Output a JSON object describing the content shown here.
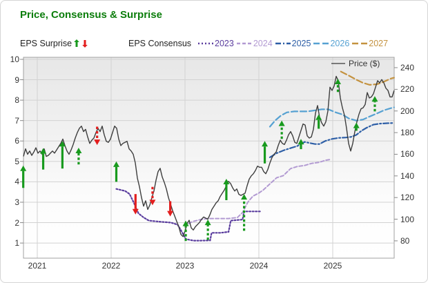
{
  "title": "Price, Consensus & Surprise",
  "colors": {
    "title": "#0b7d0b",
    "beat_arrow": "#189a1e",
    "miss_arrow": "#e31e1e",
    "price_line": "#3d3d3d",
    "grid": "#d2d2d2",
    "plot_border": "#a0a0a0",
    "axis_text": "#333333",
    "legend_text": "#222222"
  },
  "legend": {
    "surprise_label": "EPS Surprise",
    "consensus_label": "EPS Consensus",
    "series": [
      {
        "label": "2023",
        "color": "#5a3d9e",
        "dash": "2,3"
      },
      {
        "label": "2024",
        "color": "#b29ad2",
        "dash": "5,3"
      },
      {
        "label": "2025",
        "color": "#2d5ea6",
        "dash": "8,3,2,3"
      },
      {
        "label": "2026",
        "color": "#56a1d2",
        "dash": "9,4"
      },
      {
        "label": "2027",
        "color": "#c4923f",
        "dash": "9,4"
      }
    ]
  },
  "price_legend": {
    "label": "Price ($)",
    "swatch_color": "#555555"
  },
  "axes": {
    "left": {
      "ticks": [
        10,
        9,
        8,
        7,
        6,
        5,
        4,
        3,
        2,
        1
      ]
    },
    "right": {
      "ticks": [
        240,
        220,
        200,
        180,
        160,
        140,
        120,
        100,
        80
      ]
    },
    "x": {
      "ticks": [
        2021,
        2022,
        2023,
        2024,
        2025
      ]
    }
  },
  "chart_data": {
    "type": "line",
    "x_domain_years": [
      2020.813,
      2025.832
    ],
    "left_axis_domain_eps": [
      0.26,
      10.1
    ],
    "right_axis_domain_price": [
      64,
      249.6
    ],
    "grid": true,
    "price_series": {
      "name": "Price ($)",
      "axis": "right",
      "start_year": 2020.813,
      "step_years": 0.02804,
      "values": [
        158,
        165,
        160,
        163,
        159,
        162,
        166,
        161,
        163,
        160,
        165,
        158,
        159,
        161,
        163,
        161,
        164,
        167,
        170,
        174,
        168,
        163,
        160,
        164,
        169,
        175,
        180,
        184,
        186,
        181,
        183,
        176,
        170,
        173,
        175,
        180,
        184,
        181,
        186,
        178,
        172,
        171,
        174,
        180,
        186,
        184,
        174,
        168,
        170,
        171,
        172,
        165,
        163,
        160,
        152,
        138,
        130,
        120,
        112,
        117,
        109,
        113,
        120,
        126,
        136,
        144,
        147,
        139,
        134,
        128,
        120,
        114,
        108,
        103,
        98,
        93,
        86,
        84,
        89,
        96,
        99,
        92,
        90,
        93,
        95,
        97,
        100,
        102,
        101,
        100,
        104,
        109,
        112,
        115,
        117,
        121,
        124,
        127,
        131,
        135,
        133,
        129,
        126,
        128,
        123,
        122,
        123,
        124,
        131,
        137,
        140,
        142,
        145,
        149,
        148,
        148,
        144,
        142,
        146,
        152,
        157,
        160,
        162,
        168,
        173,
        170,
        169,
        173,
        178,
        181,
        177,
        171,
        170,
        176,
        182,
        188,
        187,
        177,
        175,
        176,
        183,
        198,
        205,
        194,
        189,
        186,
        190,
        200,
        222,
        219,
        223,
        232,
        228,
        212,
        203,
        196,
        184,
        170,
        163,
        170,
        181,
        190,
        197,
        202,
        203,
        206,
        217,
        212,
        213,
        216,
        222,
        228,
        226,
        229,
        226,
        221,
        219,
        213,
        213,
        219
      ]
    },
    "consensus_series": [
      {
        "name": "2023",
        "axis": "left",
        "color": "#5a3d9e",
        "dash": "2,2.5",
        "width": 2.2,
        "points": [
          [
            2022.07,
            3.65
          ],
          [
            2022.19,
            3.55
          ],
          [
            2022.25,
            3.4
          ],
          [
            2022.31,
            2.95
          ],
          [
            2022.37,
            2.45
          ],
          [
            2022.44,
            2.25
          ],
          [
            2022.51,
            2.1
          ],
          [
            2022.65,
            2.05
          ],
          [
            2022.81,
            2.0
          ],
          [
            2022.9,
            1.9
          ],
          [
            2022.95,
            1.6
          ],
          [
            2023.01,
            1.2
          ],
          [
            2023.07,
            1.15
          ],
          [
            2023.12,
            1.12
          ],
          [
            2023.21,
            1.12
          ],
          [
            2023.34,
            1.13
          ],
          [
            2023.36,
            1.5
          ],
          [
            2023.48,
            1.5
          ],
          [
            2023.59,
            1.55
          ],
          [
            2023.62,
            2.1
          ],
          [
            2023.78,
            2.15
          ],
          [
            2023.8,
            2.55
          ],
          [
            2024.02,
            2.55
          ]
        ]
      },
      {
        "name": "2024",
        "axis": "left",
        "color": "#b29ad2",
        "dash": "5,3",
        "width": 2,
        "points": [
          [
            2023.05,
            1.95
          ],
          [
            2023.1,
            2.05
          ],
          [
            2023.21,
            2.15
          ],
          [
            2023.31,
            2.2
          ],
          [
            2023.59,
            2.2
          ],
          [
            2023.71,
            2.25
          ],
          [
            2023.78,
            2.5
          ],
          [
            2023.85,
            3.0
          ],
          [
            2023.92,
            3.3
          ],
          [
            2024.0,
            3.45
          ],
          [
            2024.06,
            3.6
          ],
          [
            2024.15,
            3.9
          ],
          [
            2024.24,
            4.2
          ],
          [
            2024.33,
            4.3
          ],
          [
            2024.43,
            4.65
          ],
          [
            2024.52,
            4.75
          ],
          [
            2024.62,
            4.8
          ],
          [
            2024.71,
            4.9
          ],
          [
            2024.81,
            4.95
          ],
          [
            2024.9,
            5.05
          ],
          [
            2024.97,
            5.1
          ]
        ]
      },
      {
        "name": "2025",
        "axis": "left",
        "color": "#2d5ea6",
        "dash": "8,3,2,3",
        "width": 2.2,
        "points": [
          [
            2024.15,
            5.2
          ],
          [
            2024.24,
            5.4
          ],
          [
            2024.34,
            5.55
          ],
          [
            2024.43,
            5.65
          ],
          [
            2024.52,
            5.75
          ],
          [
            2024.62,
            5.95
          ],
          [
            2024.69,
            5.9
          ],
          [
            2024.76,
            5.85
          ],
          [
            2024.82,
            5.85
          ],
          [
            2024.9,
            6.0
          ],
          [
            2024.99,
            6.1
          ],
          [
            2025.08,
            6.15
          ],
          [
            2025.18,
            6.17
          ],
          [
            2025.25,
            6.2
          ],
          [
            2025.32,
            6.3
          ],
          [
            2025.39,
            6.5
          ],
          [
            2025.46,
            6.65
          ],
          [
            2025.55,
            6.8
          ],
          [
            2025.64,
            6.85
          ],
          [
            2025.74,
            6.87
          ],
          [
            2025.83,
            6.88
          ]
        ]
      },
      {
        "name": "2026",
        "axis": "left",
        "color": "#56a1d2",
        "dash": "9,4",
        "width": 2.2,
        "points": [
          [
            2024.15,
            6.7
          ],
          [
            2024.22,
            7.0
          ],
          [
            2024.3,
            7.25
          ],
          [
            2024.38,
            7.4
          ],
          [
            2024.48,
            7.45
          ],
          [
            2024.57,
            7.45
          ],
          [
            2024.66,
            7.45
          ],
          [
            2024.76,
            7.5
          ],
          [
            2024.85,
            7.55
          ],
          [
            2024.94,
            7.55
          ],
          [
            2025.04,
            7.4
          ],
          [
            2025.13,
            7.3
          ],
          [
            2025.22,
            7.1
          ],
          [
            2025.32,
            7.0
          ],
          [
            2025.41,
            7.05
          ],
          [
            2025.5,
            7.2
          ],
          [
            2025.6,
            7.35
          ],
          [
            2025.69,
            7.5
          ],
          [
            2025.78,
            7.6
          ],
          [
            2025.83,
            7.65
          ]
        ]
      },
      {
        "name": "2027",
        "axis": "left",
        "color": "#c4923f",
        "dash": "9,4",
        "width": 2.2,
        "points": [
          [
            2025.11,
            9.4
          ],
          [
            2025.22,
            9.2
          ],
          [
            2025.32,
            9.0
          ],
          [
            2025.41,
            8.85
          ],
          [
            2025.5,
            8.75
          ],
          [
            2025.6,
            8.78
          ],
          [
            2025.69,
            8.9
          ],
          [
            2025.78,
            9.05
          ],
          [
            2025.83,
            9.1
          ]
        ]
      }
    ],
    "surprise_arrows": [
      {
        "year": 2020.81,
        "from_eps": 3.7,
        "to_eps": 4.8,
        "result": "beat",
        "style": "solid"
      },
      {
        "year": 2021.08,
        "from_eps": 4.6,
        "to_eps": 5.65,
        "result": "beat",
        "style": "solid"
      },
      {
        "year": 2021.34,
        "from_eps": 4.65,
        "to_eps": 6.0,
        "result": "beat",
        "style": "solid"
      },
      {
        "year": 2021.56,
        "from_eps": 4.85,
        "to_eps": 5.67,
        "result": "beat",
        "style": "dashed"
      },
      {
        "year": 2021.81,
        "from_eps": 6.7,
        "to_eps": 5.8,
        "result": "miss",
        "style": "dashed"
      },
      {
        "year": 2022.07,
        "from_eps": 4.0,
        "to_eps": 5.0,
        "result": "beat",
        "style": "solid"
      },
      {
        "year": 2022.33,
        "from_eps": 3.4,
        "to_eps": 2.4,
        "result": "miss",
        "style": "solid"
      },
      {
        "year": 2022.56,
        "from_eps": 3.75,
        "to_eps": 2.85,
        "result": "miss",
        "style": "dashed"
      },
      {
        "year": 2022.8,
        "from_eps": 3.05,
        "to_eps": 2.3,
        "result": "miss",
        "style": "solid"
      },
      {
        "year": 2023.01,
        "from_eps": 1.1,
        "to_eps": 2.1,
        "result": "beat",
        "style": "dashed"
      },
      {
        "year": 2023.31,
        "from_eps": 1.15,
        "to_eps": 2.15,
        "result": "beat",
        "style": "dashed"
      },
      {
        "year": 2023.56,
        "from_eps": 3.1,
        "to_eps": 4.15,
        "result": "beat",
        "style": "solid"
      },
      {
        "year": 2023.8,
        "from_eps": 1.6,
        "to_eps": 3.4,
        "result": "beat",
        "style": "dashed"
      },
      {
        "year": 2024.08,
        "from_eps": 4.9,
        "to_eps": 6.0,
        "result": "beat",
        "style": "solid"
      },
      {
        "year": 2024.31,
        "from_eps": 6.1,
        "to_eps": 7.0,
        "result": "beat",
        "style": "dashed"
      },
      {
        "year": 2024.57,
        "from_eps": 5.6,
        "to_eps": 6.1,
        "result": "beat",
        "style": "solid"
      },
      {
        "year": 2024.81,
        "from_eps": 6.6,
        "to_eps": 7.3,
        "result": "beat",
        "style": "solid"
      },
      {
        "year": 2025.07,
        "from_eps": 8.4,
        "to_eps": 9.05,
        "result": "beat",
        "style": "dashed"
      },
      {
        "year": 2025.32,
        "from_eps": 6.5,
        "to_eps": 6.9,
        "result": "beat",
        "style": "solid"
      },
      {
        "year": 2025.57,
        "from_eps": 7.45,
        "to_eps": 8.2,
        "result": "beat",
        "style": "dashed"
      }
    ]
  }
}
